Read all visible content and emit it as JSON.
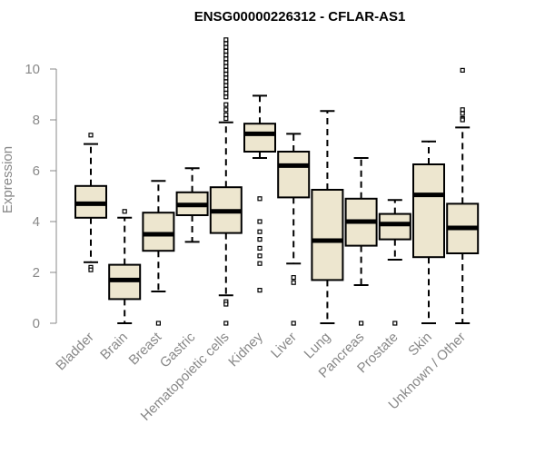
{
  "chart_data": {
    "type": "boxplot",
    "title": "ENSG00000226312 - CFLAR-AS1",
    "xlabel": "",
    "ylabel": "Expression",
    "ylim": [
      0,
      11
    ],
    "yticks": [
      0,
      2,
      4,
      6,
      8,
      10
    ],
    "box_fill": "#ede6cf",
    "median_color": "#000000",
    "axis_color": "#888888",
    "categories": [
      "Bladder",
      "Brain",
      "Breast",
      "Gastric",
      "Hematopoietic cells",
      "Kidney",
      "Liver",
      "Lung",
      "Pancreas",
      "Prostate",
      "Skin",
      "Unknown / Other"
    ],
    "boxes": [
      {
        "label": "Bladder",
        "whisker_low": 2.4,
        "q1": 4.15,
        "median": 4.7,
        "q3": 5.4,
        "whisker_high": 7.05,
        "outliers": [
          7.4,
          2.2,
          2.1
        ]
      },
      {
        "label": "Brain",
        "whisker_low": 0.0,
        "q1": 0.95,
        "median": 1.7,
        "q3": 2.3,
        "whisker_high": 4.15,
        "outliers": [
          4.4
        ]
      },
      {
        "label": "Breast",
        "whisker_low": 1.25,
        "q1": 2.85,
        "median": 3.5,
        "q3": 4.35,
        "whisker_high": 5.6,
        "outliers": [
          0.0
        ]
      },
      {
        "label": "Gastric",
        "whisker_low": 3.2,
        "q1": 4.25,
        "median": 4.65,
        "q3": 5.15,
        "whisker_high": 6.1,
        "outliers": []
      },
      {
        "label": "Hematopoietic cells",
        "whisker_low": 1.1,
        "q1": 3.55,
        "median": 4.4,
        "q3": 5.35,
        "whisker_high": 7.9,
        "outliers": [
          11.15,
          11.0,
          10.85,
          10.7,
          10.55,
          10.4,
          10.25,
          10.1,
          9.95,
          9.8,
          9.65,
          9.5,
          9.35,
          9.2,
          9.05,
          8.9,
          8.6,
          8.4,
          8.2,
          8.05,
          0.85,
          0.75,
          0.0
        ]
      },
      {
        "label": "Kidney",
        "whisker_low": 6.5,
        "q1": 6.75,
        "median": 7.45,
        "q3": 7.85,
        "whisker_high": 8.95,
        "outliers": [
          4.9,
          4.0,
          3.6,
          3.3,
          2.95,
          2.65,
          2.35,
          1.3
        ]
      },
      {
        "label": "Liver",
        "whisker_low": 2.35,
        "q1": 4.95,
        "median": 6.2,
        "q3": 6.75,
        "whisker_high": 7.45,
        "outliers": [
          1.8,
          1.6,
          0.0
        ]
      },
      {
        "label": "Lung",
        "whisker_low": 0.0,
        "q1": 1.7,
        "median": 3.25,
        "q3": 5.25,
        "whisker_high": 8.35,
        "outliers": []
      },
      {
        "label": "Pancreas",
        "whisker_low": 1.5,
        "q1": 3.05,
        "median": 4.0,
        "q3": 4.9,
        "whisker_high": 6.5,
        "outliers": [
          0.0
        ]
      },
      {
        "label": "Prostate",
        "whisker_low": 2.5,
        "q1": 3.3,
        "median": 3.9,
        "q3": 4.3,
        "whisker_high": 4.85,
        "outliers": [
          0.0
        ]
      },
      {
        "label": "Skin",
        "whisker_low": 0.0,
        "q1": 2.6,
        "median": 5.05,
        "q3": 6.25,
        "whisker_high": 7.15,
        "outliers": []
      },
      {
        "label": "Unknown / Other",
        "whisker_low": 0.0,
        "q1": 2.75,
        "median": 3.75,
        "q3": 4.7,
        "whisker_high": 7.7,
        "outliers": [
          9.95,
          8.4,
          8.25,
          8.05,
          8.0
        ]
      }
    ]
  }
}
